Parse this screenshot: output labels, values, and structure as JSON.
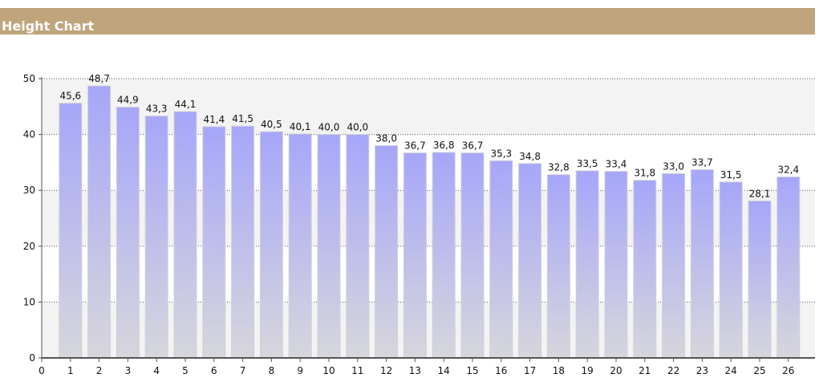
{
  "header": {
    "title": "Height Chart"
  },
  "colors": {
    "header_bg": "#bfa47c",
    "bar_top": "#a6a6fa",
    "bar_bottom": "#d6d6dc",
    "plot_band": "#f3f3f3"
  },
  "chart_data": {
    "type": "bar",
    "title": "Height Chart",
    "xlabel": "",
    "ylabel": "",
    "categories": [
      "1",
      "2",
      "3",
      "4",
      "5",
      "6",
      "7",
      "8",
      "9",
      "10",
      "11",
      "12",
      "13",
      "14",
      "15",
      "16",
      "17",
      "18",
      "19",
      "20",
      "21",
      "22",
      "23",
      "24",
      "25",
      "26"
    ],
    "values": [
      45.6,
      48.7,
      44.9,
      43.3,
      44.1,
      41.4,
      41.5,
      40.5,
      40.1,
      40.0,
      40.0,
      38.0,
      36.7,
      36.8,
      36.7,
      35.3,
      34.8,
      32.8,
      33.5,
      33.4,
      31.8,
      33.0,
      33.7,
      31.5,
      28.1,
      32.4
    ],
    "value_labels": [
      "45,6",
      "48,7",
      "44,9",
      "43,3",
      "44,1",
      "41,4",
      "41,5",
      "40,5",
      "40,1",
      "40,0",
      "40,0",
      "38,0",
      "36,7",
      "36,8",
      "36,7",
      "35,3",
      "34,8",
      "32,8",
      "33,5",
      "33,4",
      "31,8",
      "33,0",
      "33,7",
      "31,5",
      "28,1",
      "32,4"
    ],
    "x_tick_labels": [
      "0",
      "1",
      "2",
      "3",
      "4",
      "5",
      "6",
      "7",
      "8",
      "9",
      "10",
      "11",
      "12",
      "13",
      "14",
      "15",
      "16",
      "17",
      "18",
      "19",
      "20",
      "21",
      "22",
      "23",
      "24",
      "25",
      "26"
    ],
    "y_ticks": [
      0,
      10,
      20,
      30,
      40,
      50
    ],
    "y_tick_labels": [
      "0",
      "10",
      "20",
      "30",
      "40",
      "50"
    ],
    "ylim": [
      0,
      50
    ],
    "xlim": [
      0,
      26.7
    ],
    "grid": true,
    "legend": "none"
  }
}
